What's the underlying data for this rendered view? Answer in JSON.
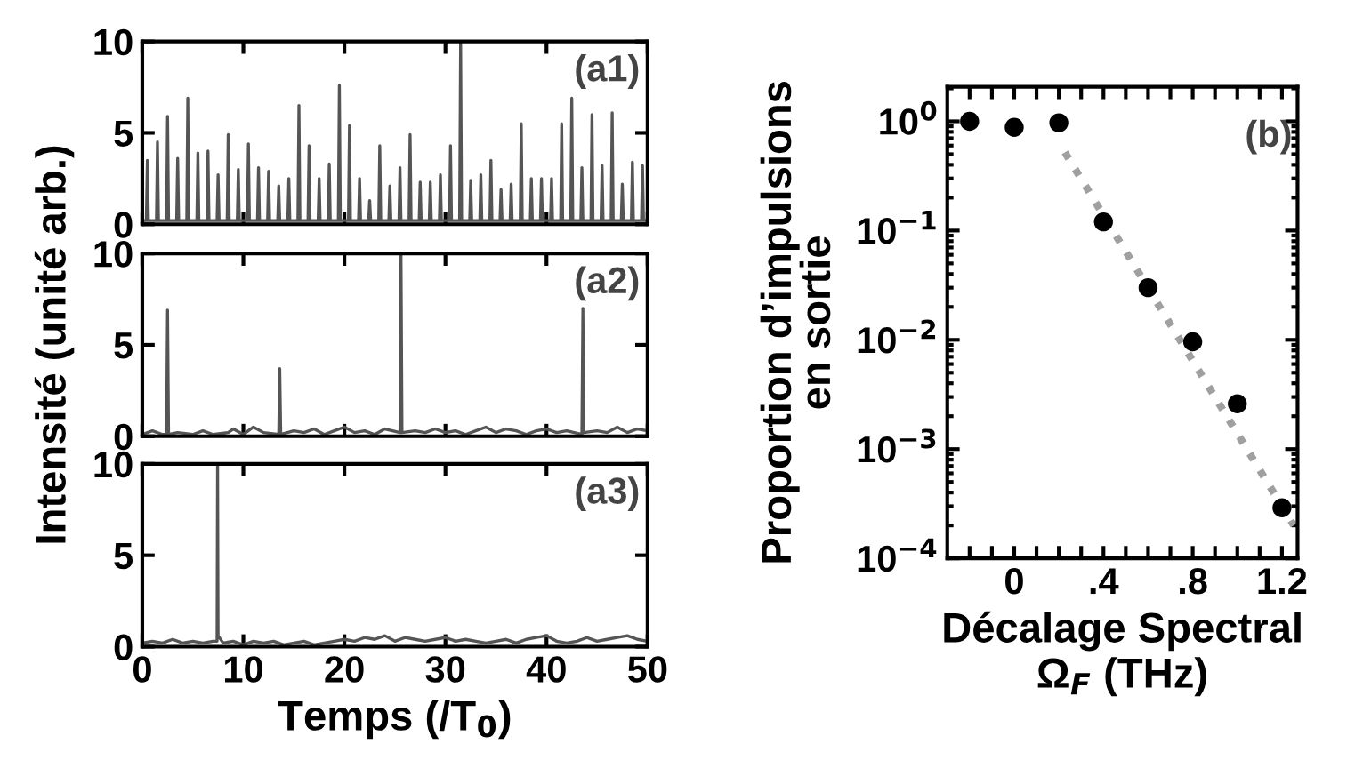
{
  "chart_data": [
    {
      "type": "line",
      "annotations": [
        "(a1)"
      ],
      "tick_labels": "y",
      "xlim": [
        0,
        50
      ],
      "ylim": [
        0,
        10
      ],
      "xticks": [
        {
          "value": 0,
          "label": null
        },
        {
          "value": 10,
          "label": null
        },
        {
          "value": 20,
          "label": null
        },
        {
          "value": 30,
          "label": null
        },
        {
          "value": 40,
          "label": null
        },
        {
          "value": 50,
          "label": null
        }
      ],
      "yticks": [
        0,
        5,
        10
      ],
      "grid": false,
      "marker": "none",
      "line_style": "solid",
      "series": [
        {
          "color": "#555555",
          "x": [
            0,
            0.4,
            0.5,
            0.6,
            1.4,
            1.5,
            1.6,
            2.4,
            2.5,
            2.6,
            3.4,
            3.5,
            3.6,
            4.4,
            4.5,
            4.6,
            5.4,
            5.5,
            5.6,
            6.4,
            6.5,
            6.6,
            7.4,
            7.5,
            7.6,
            8.4,
            8.5,
            8.6,
            9.4,
            9.5,
            9.6,
            10.4,
            10.5,
            10.6,
            11.4,
            11.5,
            11.6,
            12.4,
            12.5,
            12.6,
            13.4,
            13.5,
            13.6,
            14.4,
            14.5,
            14.6,
            15.4,
            15.5,
            15.6,
            16.4,
            16.5,
            16.6,
            17.4,
            17.5,
            17.6,
            18.4,
            18.5,
            18.6,
            19.4,
            19.5,
            19.6,
            20.4,
            20.5,
            20.6,
            21.4,
            21.5,
            21.6,
            22.4,
            22.5,
            22.6,
            23.4,
            23.5,
            23.6,
            24.4,
            24.5,
            24.6,
            25.4,
            25.5,
            25.6,
            26.4,
            26.5,
            26.6,
            27.4,
            27.5,
            27.6,
            28.4,
            28.5,
            28.6,
            29.4,
            29.5,
            29.6,
            30.4,
            30.5,
            30.6,
            31.4,
            31.5,
            31.6,
            32.4,
            32.5,
            32.6,
            33.4,
            33.5,
            33.6,
            34.4,
            34.5,
            34.6,
            35.4,
            35.5,
            35.6,
            36.4,
            36.5,
            36.6,
            37.4,
            37.5,
            37.6,
            38.4,
            38.5,
            38.6,
            39.4,
            39.5,
            39.6,
            40.4,
            40.5,
            40.6,
            41.4,
            41.5,
            41.6,
            42.4,
            42.5,
            42.6,
            43.4,
            43.5,
            43.6,
            44.4,
            44.5,
            44.6,
            45.4,
            45.5,
            45.6,
            46.4,
            46.5,
            46.6,
            47.4,
            47.5,
            47.6,
            48.4,
            48.5,
            48.6,
            49.4,
            49.5,
            49.6,
            50
          ],
          "values": [
            0.2,
            0.2,
            3.5,
            0.2,
            0.2,
            4.5,
            0.2,
            0.2,
            5.9,
            0.2,
            0.2,
            3.6,
            0.2,
            0.2,
            6.9,
            0.2,
            0.2,
            3.9,
            0.2,
            0.2,
            4.0,
            0.2,
            0.2,
            2.7,
            0.2,
            0.2,
            4.9,
            0.2,
            0.2,
            3.0,
            0.2,
            0.2,
            4.4,
            0.2,
            0.2,
            3.1,
            0.2,
            0.2,
            2.9,
            0.2,
            0.2,
            2.1,
            0.2,
            0.2,
            2.5,
            0.2,
            0.2,
            6.5,
            0.2,
            0.2,
            4.3,
            0.2,
            0.2,
            2.5,
            0.2,
            0.2,
            3.3,
            0.2,
            0.2,
            7.6,
            0.2,
            0.2,
            5.4,
            0.2,
            0.2,
            2.5,
            0.2,
            0.2,
            1.3,
            0.2,
            0.2,
            4.3,
            0.2,
            0.2,
            2.1,
            0.2,
            0.2,
            3.1,
            0.2,
            0.2,
            4.9,
            0.2,
            0.2,
            2.3,
            0.2,
            0.2,
            2.3,
            0.2,
            0.2,
            2.7,
            0.2,
            0.2,
            4.3,
            0.2,
            0.2,
            10,
            0.2,
            0.2,
            2.4,
            0.2,
            0.2,
            2.7,
            0.2,
            0.2,
            3.5,
            0.2,
            0.2,
            1.9,
            0.2,
            0.2,
            2.2,
            0.2,
            0.2,
            5.5,
            0.2,
            0.2,
            2.5,
            0.2,
            0.2,
            2.5,
            0.2,
            0.2,
            2.5,
            0.2,
            0.2,
            5.5,
            0.2,
            0.2,
            6.9,
            0.2,
            0.2,
            3.1,
            0.2,
            0.2,
            6.0,
            0.2,
            0.2,
            3.2,
            0.2,
            0.2,
            6.1,
            0.2,
            0.2,
            2.2,
            0.2,
            0.2,
            3.4,
            0.2,
            0.2,
            3.2,
            0.2,
            0.2
          ]
        }
      ]
    },
    {
      "type": "line",
      "ylabel": "Intensité (unité arb.)",
      "annotations": [
        "(a2)"
      ],
      "tick_labels": "y",
      "xlim": [
        0,
        50
      ],
      "ylim": [
        0,
        10
      ],
      "xticks": [
        {
          "value": 0,
          "label": null
        },
        {
          "value": 10,
          "label": null
        },
        {
          "value": 20,
          "label": null
        },
        {
          "value": 30,
          "label": null
        },
        {
          "value": 40,
          "label": null
        },
        {
          "value": 50,
          "label": null
        }
      ],
      "yticks": [
        0,
        5,
        10
      ],
      "grid": false,
      "marker": "none",
      "line_style": "solid",
      "series": [
        {
          "color": "#555555",
          "x": [
            0,
            1,
            2,
            2.4,
            2.5,
            2.6,
            3.5,
            5,
            6,
            7,
            8.5,
            9,
            10,
            11,
            12,
            13.5,
            13.6,
            13.7,
            15,
            16,
            17,
            18,
            19,
            20,
            21,
            22,
            23,
            24,
            25.5,
            25.6,
            25.7,
            27,
            28,
            29,
            30,
            31,
            32,
            33,
            34,
            35,
            36,
            37,
            38,
            39,
            40,
            41,
            42,
            43.5,
            43.6,
            43.7,
            45,
            46,
            47,
            48,
            49,
            50
          ],
          "values": [
            0.1,
            0.3,
            0.1,
            0.1,
            6.9,
            0.1,
            0.2,
            0.1,
            0.3,
            0.1,
            0.2,
            0.4,
            0.1,
            0.5,
            0.2,
            0.1,
            3.7,
            0.1,
            0.3,
            0.2,
            0.4,
            0.1,
            0.3,
            0.5,
            0.2,
            0.3,
            0.1,
            0.4,
            0.2,
            10,
            0.2,
            0.3,
            0.2,
            0.4,
            0.2,
            0.3,
            0.1,
            0.3,
            0.5,
            0.2,
            0.4,
            0.3,
            0.1,
            0.3,
            0.4,
            0.2,
            0.3,
            0.1,
            7.0,
            0.2,
            0.3,
            0.2,
            0.5,
            0.2,
            0.4,
            0.3
          ]
        }
      ]
    },
    {
      "type": "line",
      "xlabel": "Temps (/T$_{0}$)",
      "annotations": [
        "(a3)"
      ],
      "xlim": [
        0,
        50
      ],
      "ylim": [
        0,
        10
      ],
      "xticks": [
        0,
        10,
        20,
        30,
        40,
        50
      ],
      "yticks": [
        0,
        5,
        10
      ],
      "grid": false,
      "marker": "none",
      "line_style": "solid",
      "series": [
        {
          "color": "#555555",
          "x": [
            0,
            1,
            2,
            3,
            4,
            5,
            6,
            7,
            7.4,
            7.45,
            7.5,
            8,
            9,
            10,
            11,
            12,
            13,
            14,
            15,
            16,
            17,
            18,
            19,
            20,
            21,
            22,
            23,
            24,
            25,
            26,
            27,
            28,
            29,
            30,
            31,
            32,
            33,
            34,
            35,
            36,
            37,
            38,
            39,
            40,
            41,
            42,
            43,
            44,
            45,
            46,
            47,
            48,
            49,
            50
          ],
          "values": [
            0.2,
            0.3,
            0.2,
            0.4,
            0.2,
            0.3,
            0.2,
            0.3,
            0.3,
            10,
            0.6,
            0.2,
            0.3,
            0.1,
            0.3,
            0.2,
            0.3,
            0.1,
            0.2,
            0.3,
            0.1,
            0.2,
            0.3,
            0.4,
            0.3,
            0.5,
            0.4,
            0.6,
            0.3,
            0.5,
            0.4,
            0.3,
            0.4,
            0.5,
            0.3,
            0.4,
            0.3,
            0.2,
            0.3,
            0.4,
            0.2,
            0.4,
            0.5,
            0.6,
            0.3,
            0.2,
            0.3,
            0.5,
            0.3,
            0.4,
            0.5,
            0.6,
            0.4,
            0.3
          ]
        }
      ]
    },
    {
      "type": "scatter",
      "ylabel": "Proportion d’impulsions\nen sortie",
      "xlabel": "Décalage Spectral\nΩ$_{F}$ (THz)",
      "annotations": [
        "(b)"
      ],
      "log": "y",
      "grid": false,
      "marker": "circle",
      "xlim": [
        -0.3,
        1.27
      ],
      "ylim": [
        0.0001,
        2.07
      ],
      "xticks": [
        {
          "value": -0.2,
          "label": null
        },
        {
          "value": -0.1,
          "label": null
        },
        0,
        {
          "value": 0.1,
          "label": null
        },
        {
          "value": 0.2,
          "label": null
        },
        {
          "value": 0.3,
          "label": null
        },
        {
          "value": 0.4,
          "label": ".4"
        },
        {
          "value": 0.5,
          "label": null
        },
        {
          "value": 0.6,
          "label": null
        },
        {
          "value": 0.7,
          "label": null
        },
        {
          "value": 0.8,
          "label": ".8"
        },
        {
          "value": 0.9,
          "label": null
        },
        {
          "value": 1.0,
          "label": null
        },
        {
          "value": 1.1,
          "label": null
        },
        1.2
      ],
      "yticks": [
        {
          "value": 1,
          "label": "10$^{0}$"
        },
        {
          "value": 0.1,
          "label": "10$^{−1}$"
        },
        {
          "value": 0.01,
          "label": "10$^{−2}$"
        },
        {
          "value": 0.001,
          "label": "10$^{−3}$"
        },
        {
          "value": 0.0001,
          "label": "10$^{−4}$"
        }
      ],
      "series": [
        {
          "color": "#000000",
          "x": [
            -0.2,
            0,
            0.2,
            0.4,
            0.6,
            0.8,
            1.0,
            1.2
          ],
          "values": [
            1.0,
            0.88,
            0.97,
            0.12,
            0.03,
            0.0096,
            0.0026,
            0.00029
          ]
        },
        {
          "type": "line",
          "line_style": "dotted",
          "marker": "none",
          "color": "#a0a0a0",
          "x": [
            0.227,
            1.253
          ],
          "values": [
            0.52,
            0.0002
          ]
        }
      ]
    }
  ]
}
